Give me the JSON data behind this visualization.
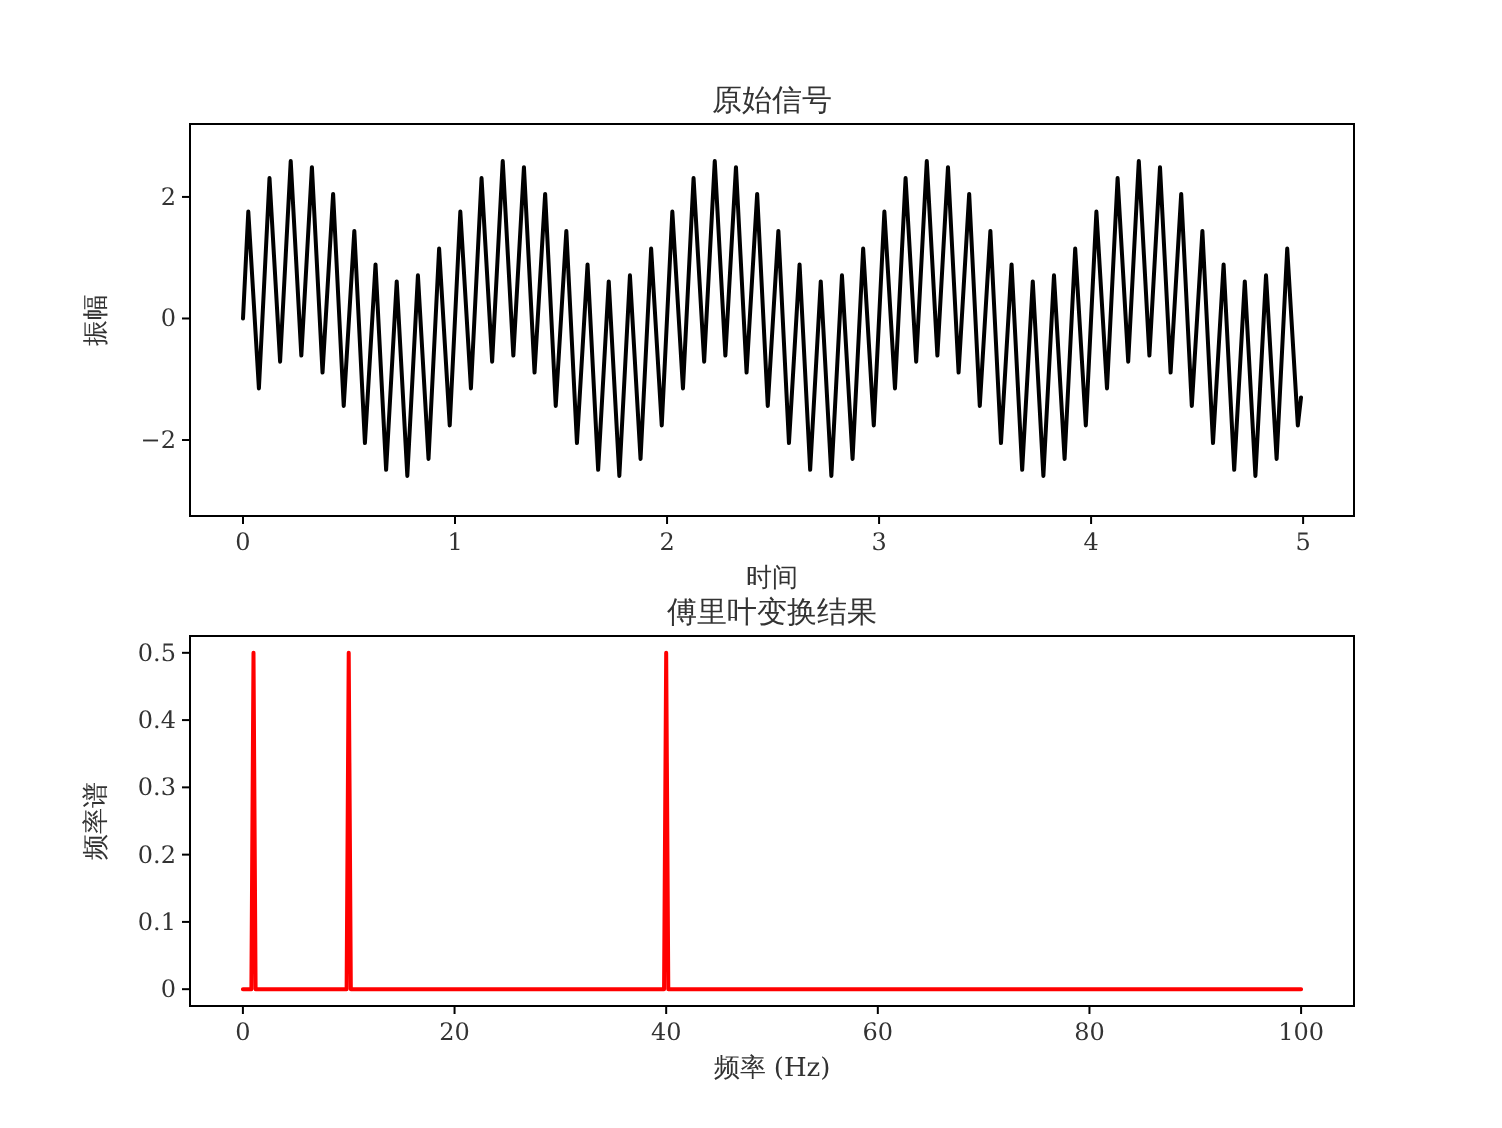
{
  "chart_data": [
    {
      "type": "line",
      "title": "原始信号",
      "xlabel": "时间",
      "ylabel": "振幅",
      "xlim": [
        -0.25,
        5.24
      ],
      "ylim": [
        -3.25,
        3.2
      ],
      "xticks": [
        0,
        1,
        2,
        3,
        4,
        5
      ],
      "yticks": [
        -2,
        0,
        2
      ],
      "x": [
        0,
        0.025,
        0.075,
        0.125,
        0.175,
        0.225,
        0.275,
        0.325,
        0.375,
        0.425,
        0.475,
        0.525,
        0.575,
        0.625,
        0.675,
        0.725,
        0.775,
        0.825,
        0.875,
        0.925,
        0.975,
        1.025,
        1.075,
        1.125,
        1.175,
        1.225,
        1.275,
        1.325,
        1.375,
        1.425,
        1.475,
        1.525,
        1.575,
        1.625,
        1.675,
        1.725,
        1.775,
        1.825,
        1.875,
        1.925,
        1.975,
        2.025,
        2.075,
        2.125,
        2.175,
        2.225,
        2.275,
        2.325,
        2.375,
        2.425,
        2.475,
        2.525,
        2.575,
        2.625,
        2.675,
        2.725,
        2.775,
        2.825,
        2.875,
        2.925,
        2.975,
        3.025,
        3.075,
        3.125,
        3.175,
        3.225,
        3.275,
        3.325,
        3.375,
        3.425,
        3.475,
        3.525,
        3.575,
        3.625,
        3.675,
        3.725,
        3.775,
        3.825,
        3.875,
        3.925,
        3.975,
        4.025,
        4.075,
        4.125,
        4.175,
        4.225,
        4.275,
        4.325,
        4.375,
        4.425,
        4.475,
        4.525,
        4.575,
        4.625,
        4.675,
        4.725,
        4.775,
        4.825,
        4.875,
        4.925,
        4.975,
        4.99
      ],
      "series": [
        {
          "color": "#000000",
          "values": [
            0,
            1.76,
            -1.15,
            2.31,
            -0.71,
            2.59,
            -0.61,
            2.49,
            -0.89,
            2.05,
            -1.44,
            1.44,
            -2.05,
            0.89,
            -2.49,
            0.61,
            -2.59,
            0.71,
            -2.31,
            1.15,
            -1.76,
            1.76,
            -1.15,
            2.31,
            -0.71,
            2.59,
            -0.61,
            2.49,
            -0.89,
            2.05,
            -1.44,
            1.44,
            -2.05,
            0.89,
            -2.49,
            0.61,
            -2.59,
            0.71,
            -2.31,
            1.15,
            -1.76,
            1.76,
            -1.15,
            2.31,
            -0.71,
            2.59,
            -0.61,
            2.49,
            -0.89,
            2.05,
            -1.44,
            1.44,
            -2.05,
            0.89,
            -2.49,
            0.61,
            -2.59,
            0.71,
            -2.31,
            1.15,
            -1.76,
            1.76,
            -1.15,
            2.31,
            -0.71,
            2.59,
            -0.61,
            2.49,
            -0.89,
            2.05,
            -1.44,
            1.44,
            -2.05,
            0.89,
            -2.49,
            0.61,
            -2.59,
            0.71,
            -2.31,
            1.15,
            -1.76,
            1.76,
            -1.15,
            2.31,
            -0.71,
            2.59,
            -0.61,
            2.49,
            -0.89,
            2.05,
            -1.44,
            1.44,
            -2.05,
            0.89,
            -2.49,
            0.61,
            -2.59,
            0.71,
            -2.31,
            1.15,
            -1.76,
            -1.3
          ]
        }
      ]
    },
    {
      "type": "line",
      "title": "傅里叶变换结果",
      "xlabel": "频率 (Hz)",
      "ylabel": "频率谱",
      "xlim": [
        -5,
        105
      ],
      "ylim": [
        -0.025,
        0.525
      ],
      "xticks": [
        0,
        20,
        40,
        60,
        80,
        100
      ],
      "yticks": [
        0,
        0.1,
        0.2,
        0.3,
        0.4,
        0.5
      ],
      "x": [
        0,
        0.8,
        1,
        1.2,
        9.8,
        10,
        10.2,
        39.8,
        40,
        40.2,
        100
      ],
      "series": [
        {
          "color": "#ff0000",
          "values": [
            0,
            0,
            0.5,
            0,
            0,
            0.5,
            0,
            0,
            0.5,
            0,
            0
          ]
        }
      ]
    }
  ]
}
